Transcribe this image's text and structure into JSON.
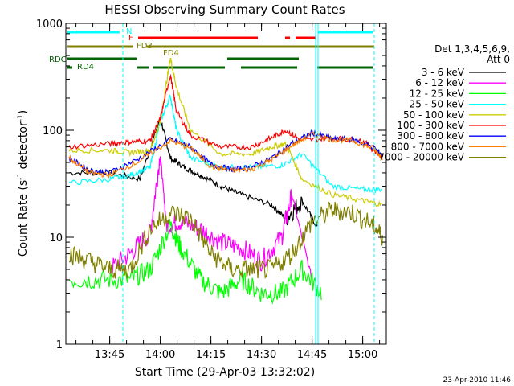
{
  "chart_data": {
    "type": "line",
    "title": "HESSI Observing Summary Count Rates",
    "xlabel": "Start Time (29-Apr-03 13:32:02)",
    "ylabel": "Count Rate (s",
    "ylabel_sup": "-1",
    "ylabel_mid": " detector",
    "ylabel_end": ")",
    "y_scale": "log",
    "ylim": [
      1,
      1000
    ],
    "xlim": [
      "13:32",
      "15:07"
    ],
    "x_ticks": [
      "13:45",
      "14:00",
      "14:15",
      "14:30",
      "14:45",
      "15:00"
    ],
    "y_ticks": [
      "1",
      "10",
      "100",
      "1000"
    ],
    "legend_header_1": "Det 1,3,4,5,6,9,",
    "legend_header_2": "Att 0",
    "legend_position": "right",
    "footer_date": "23-Apr-2010 11:46",
    "series": [
      {
        "name": "3 - 6 keV",
        "color": "#000000",
        "t": [
          13.55,
          13.75,
          13.9,
          14.0,
          14.05,
          14.12,
          14.2,
          14.3,
          14.4,
          14.55,
          14.62,
          14.7,
          14.78
        ],
        "y": [
          40,
          40,
          35,
          130,
          55,
          45,
          38,
          30,
          25,
          20,
          15,
          22,
          12
        ]
      },
      {
        "name": "6 - 12 keV",
        "color": "#ff00ff",
        "t": [
          13.75,
          13.85,
          13.95,
          14.0,
          14.03,
          14.1,
          14.2,
          14.3,
          14.4,
          14.5,
          14.6,
          14.65,
          14.75
        ],
        "y": [
          5,
          7,
          11,
          60,
          13,
          14,
          12,
          9,
          8,
          6,
          10,
          25,
          4
        ]
      },
      {
        "name": "12 - 25 keV",
        "color": "#00ff00",
        "t": [
          13.55,
          13.7,
          13.85,
          13.95,
          14.05,
          14.1,
          14.2,
          14.3,
          14.4,
          14.5,
          14.6,
          14.7,
          14.8
        ],
        "y": [
          4,
          4,
          4,
          5,
          13,
          8,
          4,
          3,
          4,
          3,
          3,
          5,
          3
        ]
      },
      {
        "name": "25 - 50 keV",
        "color": "#00ffff",
        "t": [
          13.55,
          13.75,
          13.85,
          13.95,
          14.0,
          14.05,
          14.08,
          14.15,
          14.3,
          14.45,
          14.6,
          14.7,
          14.85,
          15.0,
          15.1
        ],
        "y": [
          32,
          35,
          38,
          45,
          120,
          210,
          100,
          55,
          45,
          45,
          47,
          60,
          30,
          28,
          28
        ]
      },
      {
        "name": "50 - 100 keV",
        "color": "#cccc00",
        "t": [
          13.55,
          13.75,
          13.85,
          13.95,
          14.0,
          14.05,
          14.08,
          14.15,
          14.3,
          14.45,
          14.55,
          14.62,
          14.7,
          14.85,
          15.0,
          15.1
        ],
        "y": [
          65,
          65,
          62,
          65,
          120,
          480,
          250,
          100,
          60,
          60,
          70,
          75,
          35,
          25,
          22,
          20
        ]
      },
      {
        "name": "100 - 300 keV",
        "color": "#ff0000",
        "t": [
          13.55,
          13.75,
          13.85,
          13.95,
          14.0,
          14.05,
          14.08,
          14.15,
          14.3,
          14.45,
          14.55,
          14.62,
          14.7,
          14.85,
          15.0,
          15.1
        ],
        "y": [
          70,
          75,
          78,
          80,
          130,
          330,
          150,
          90,
          70,
          70,
          85,
          100,
          80,
          85,
          80,
          55
        ]
      },
      {
        "name": "300 - 800 keV",
        "color": "#0000ff",
        "t": [
          13.55,
          13.65,
          13.75,
          13.9,
          14.05,
          14.15,
          14.25,
          14.35,
          14.45,
          14.55,
          14.65,
          14.75,
          14.85,
          14.95,
          15.05,
          15.1
        ],
        "y": [
          55,
          42,
          40,
          55,
          82,
          70,
          48,
          43,
          45,
          55,
          75,
          95,
          83,
          82,
          70,
          58
        ]
      },
      {
        "name": "800 - 7000 keV",
        "color": "#ff8000",
        "t": [
          13.55,
          13.65,
          13.75,
          13.9,
          14.05,
          14.15,
          14.25,
          14.35,
          14.45,
          14.55,
          14.65,
          14.75,
          14.85,
          14.95,
          15.05,
          15.1
        ],
        "y": [
          55,
          40,
          38,
          52,
          80,
          68,
          46,
          42,
          43,
          53,
          72,
          92,
          82,
          80,
          68,
          55
        ]
      },
      {
        "name": "7000 - 20000 keV",
        "color": "#808000",
        "t": [
          13.55,
          13.65,
          13.75,
          13.85,
          13.95,
          14.05,
          14.15,
          14.25,
          14.35,
          14.45,
          14.55,
          14.65,
          14.75,
          14.85,
          14.95,
          15.05,
          15.1
        ],
        "y": [
          7,
          6,
          5,
          5,
          12,
          17,
          15,
          7,
          5,
          5,
          5,
          7,
          14,
          18,
          17,
          13,
          10
        ]
      }
    ],
    "flag_labels": [
      {
        "text": "N",
        "color": "#00ffff"
      },
      {
        "text": "F",
        "color": "#ff0000"
      },
      {
        "text": "FD3",
        "color": "#808000"
      },
      {
        "text": "FD4",
        "color": "#808000"
      },
      {
        "text": "RDC",
        "color": "#006400"
      },
      {
        "text": "RD4",
        "color": "#006400"
      }
    ]
  }
}
